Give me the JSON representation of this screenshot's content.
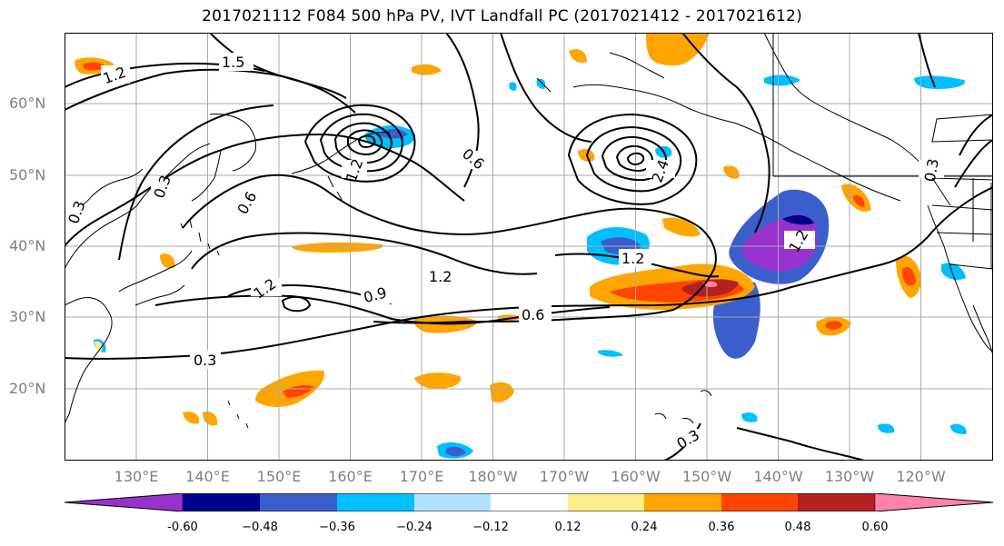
{
  "title": "2017021112 F084 500 hPa PV, IVT Landfall PC (2017021412 - 2017021612)",
  "lat_labels": [
    "60°N",
    "50°N",
    "40°N",
    "30°N",
    "20°N"
  ],
  "lon_labels": [
    "130°E",
    "140°E",
    "150°E",
    "160°E",
    "170°E",
    "180°W",
    "170°W",
    "160°W",
    "150°W",
    "140°W",
    "130°W",
    "120°W"
  ],
  "contour_labels": [
    "1.5",
    "1.2",
    "0.3",
    "0.6",
    "0.9",
    "1.2",
    "1.2",
    "0.6",
    "1.2",
    "1.2",
    "0.3",
    "0.3",
    "0.3",
    "0.6",
    "0.3",
    "1.2",
    "2.4"
  ],
  "colorbar": {
    "ticks": [
      "-0.60",
      "−0.48",
      "−0.36",
      "−0.24",
      "−0.12",
      "0.12",
      "0.24",
      "0.36",
      "0.48",
      "0.60"
    ],
    "colors": [
      "#9932cc",
      "#00008b",
      "#3a5fcd",
      "#00bfff",
      "#b0e2ff",
      "#ffffff",
      "#ffec8b",
      "#ffa500",
      "#ff4500",
      "#b22222",
      "#ff82ab"
    ]
  }
}
